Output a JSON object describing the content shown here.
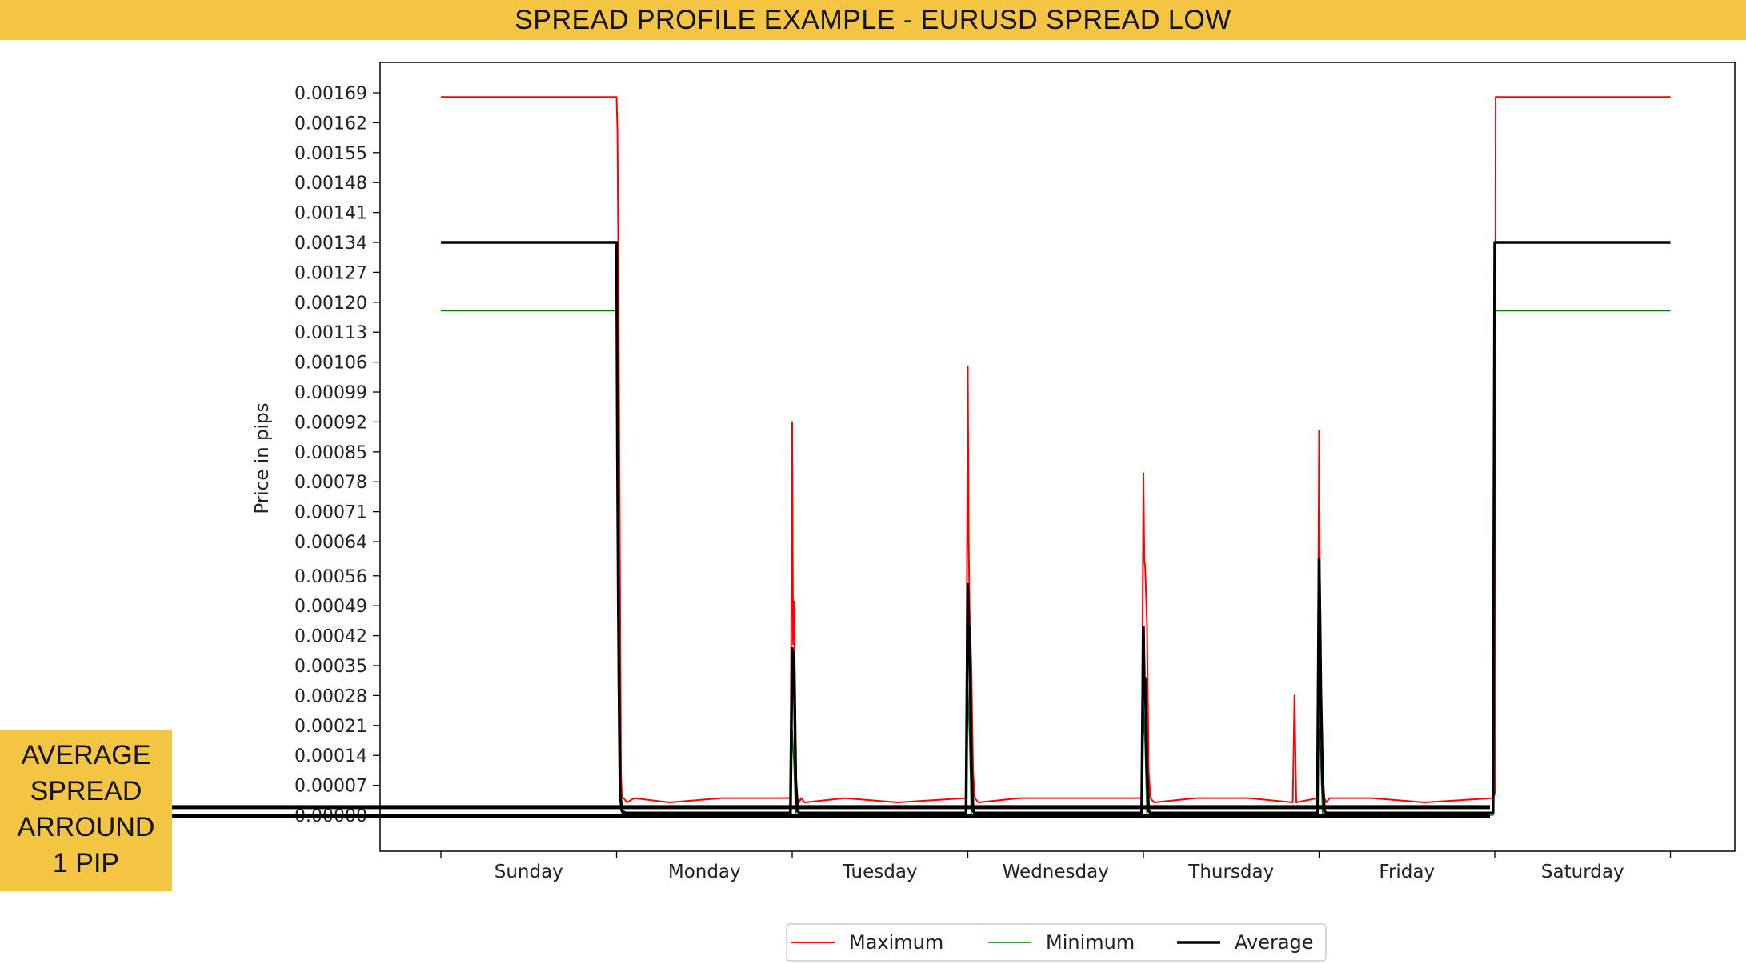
{
  "banner": {
    "title": "SPREAD PROFILE EXAMPLE - EURUSD SPREAD LOW"
  },
  "callout": {
    "text": "AVERAGE\nSPREAD\nARROUND\n1 PIP"
  },
  "colors": {
    "banner": "#f4c542",
    "maximum": "#ff0000",
    "minimum": "#008000",
    "average": "#000000"
  },
  "chart_data": {
    "type": "line",
    "title": "",
    "xlabel": "",
    "ylabel": "Price in pips",
    "categories": [
      "Sunday",
      "Monday",
      "Tuesday",
      "Wednesday",
      "Thursday",
      "Friday",
      "Saturday"
    ],
    "yticks": [
      "0.00000",
      "0.00007",
      "0.00014",
      "0.00021",
      "0.00028",
      "0.00035",
      "0.00042",
      "0.00049",
      "0.00056",
      "0.00064",
      "0.00071",
      "0.00078",
      "0.00085",
      "0.00092",
      "0.00099",
      "0.00106",
      "0.00113",
      "0.00120",
      "0.00127",
      "0.00134",
      "0.00141",
      "0.00148",
      "0.00155",
      "0.00162",
      "0.00169"
    ],
    "ylim": [
      -0.0001,
      0.00176
    ],
    "xlim": [
      -0.35,
      7.35
    ],
    "grid": false,
    "legend_position": "bottom-center",
    "series": [
      {
        "name": "Maximum",
        "color": "#ff0000",
        "x": [
          0,
          1,
          1.005,
          1.01,
          1.015,
          1.02,
          1.025,
          1.03,
          1.04,
          1.06,
          1.1,
          1.3,
          1.6,
          1.99,
          2.0,
          2.005,
          2.01,
          2.02,
          2.03,
          2.04,
          2.05,
          2.07,
          2.3,
          2.6,
          2.99,
          3.0,
          3.005,
          3.01,
          3.02,
          3.03,
          3.04,
          3.06,
          3.3,
          3.6,
          3.99,
          4.0,
          4.005,
          4.01,
          4.02,
          4.03,
          4.04,
          4.06,
          4.3,
          4.6,
          4.85,
          4.86,
          4.87,
          4.99,
          5.0,
          5.005,
          5.01,
          5.02,
          5.03,
          5.04,
          5.06,
          5.3,
          5.6,
          5.99,
          6.0,
          6.005,
          7.0
        ],
        "y": [
          0.00168,
          0.00168,
          0.0016,
          0.0013,
          0.0009,
          0.0005,
          0.0001,
          4e-05,
          4e-05,
          3e-05,
          4e-05,
          3e-05,
          4e-05,
          4e-05,
          0.00092,
          0.0004,
          0.0005,
          0.0001,
          4e-05,
          3e-05,
          4e-05,
          3e-05,
          4e-05,
          3e-05,
          4e-05,
          0.00105,
          0.00064,
          0.00048,
          0.00035,
          0.0001,
          4e-05,
          3e-05,
          4e-05,
          4e-05,
          4e-05,
          0.0008,
          0.0006,
          0.00058,
          0.00045,
          0.0001,
          4e-05,
          3e-05,
          4e-05,
          4e-05,
          3e-05,
          0.00028,
          3e-05,
          4e-05,
          0.0009,
          0.0005,
          0.00025,
          0.0001,
          4e-05,
          3e-05,
          4e-05,
          4e-05,
          3e-05,
          4e-05,
          5e-05,
          0.00168,
          0.00168
        ]
      },
      {
        "name": "Minimum",
        "color": "#008000",
        "x": [
          0,
          1,
          1.005,
          1.01,
          1.02,
          1.03,
          1.05,
          1.99,
          2.0,
          2.01,
          2.02,
          2.03,
          2.99,
          3.0,
          3.01,
          3.02,
          3.03,
          3.99,
          4.0,
          4.01,
          4.02,
          4.03,
          4.99,
          5.0,
          5.01,
          5.02,
          5.03,
          5.99,
          6.0,
          6.005,
          7.0
        ],
        "y": [
          0.00118,
          0.00118,
          0.0007,
          0.0003,
          5e-05,
          5e-06,
          0.0,
          0.0,
          0.0002,
          0.00012,
          0.0,
          0.0,
          0.0,
          0.0003,
          0.00018,
          0.0,
          0.0,
          0.0,
          0.00025,
          0.00016,
          0.0,
          0.0,
          0.0,
          0.0002,
          0.00012,
          0.0,
          0.0,
          0.0,
          0.00118,
          0.00118,
          0.00118
        ]
      },
      {
        "name": "Average",
        "color": "#000000",
        "x": [
          0,
          1,
          1.005,
          1.01,
          1.015,
          1.02,
          1.03,
          1.05,
          1.99,
          2.0,
          2.005,
          2.01,
          2.02,
          2.03,
          2.04,
          2.99,
          3.0,
          3.005,
          3.01,
          3.02,
          3.03,
          3.04,
          3.99,
          4.0,
          4.005,
          4.01,
          4.02,
          4.03,
          4.04,
          4.99,
          5.0,
          5.005,
          5.01,
          5.02,
          5.03,
          5.04,
          5.99,
          6.0,
          6.005,
          7.0
        ],
        "y": [
          0.00134,
          0.00134,
          0.00085,
          0.0005,
          0.00025,
          5e-05,
          1e-05,
          5e-06,
          5e-06,
          0.00039,
          0.0003,
          0.00038,
          8e-05,
          1e-05,
          5e-06,
          5e-06,
          0.00054,
          0.0004,
          0.00044,
          0.00012,
          1e-05,
          5e-06,
          5e-06,
          0.00044,
          0.0003,
          0.00032,
          0.0001,
          1e-05,
          5e-06,
          5e-06,
          0.0006,
          0.00045,
          0.00028,
          8e-05,
          1e-05,
          5e-06,
          5e-06,
          0.00134,
          0.00134,
          0.00134
        ]
      }
    ],
    "annotation": {
      "label": "AVERAGE SPREAD ARROUND 1 PIP",
      "y_lines": [
        0.0,
        2e-05
      ]
    }
  }
}
